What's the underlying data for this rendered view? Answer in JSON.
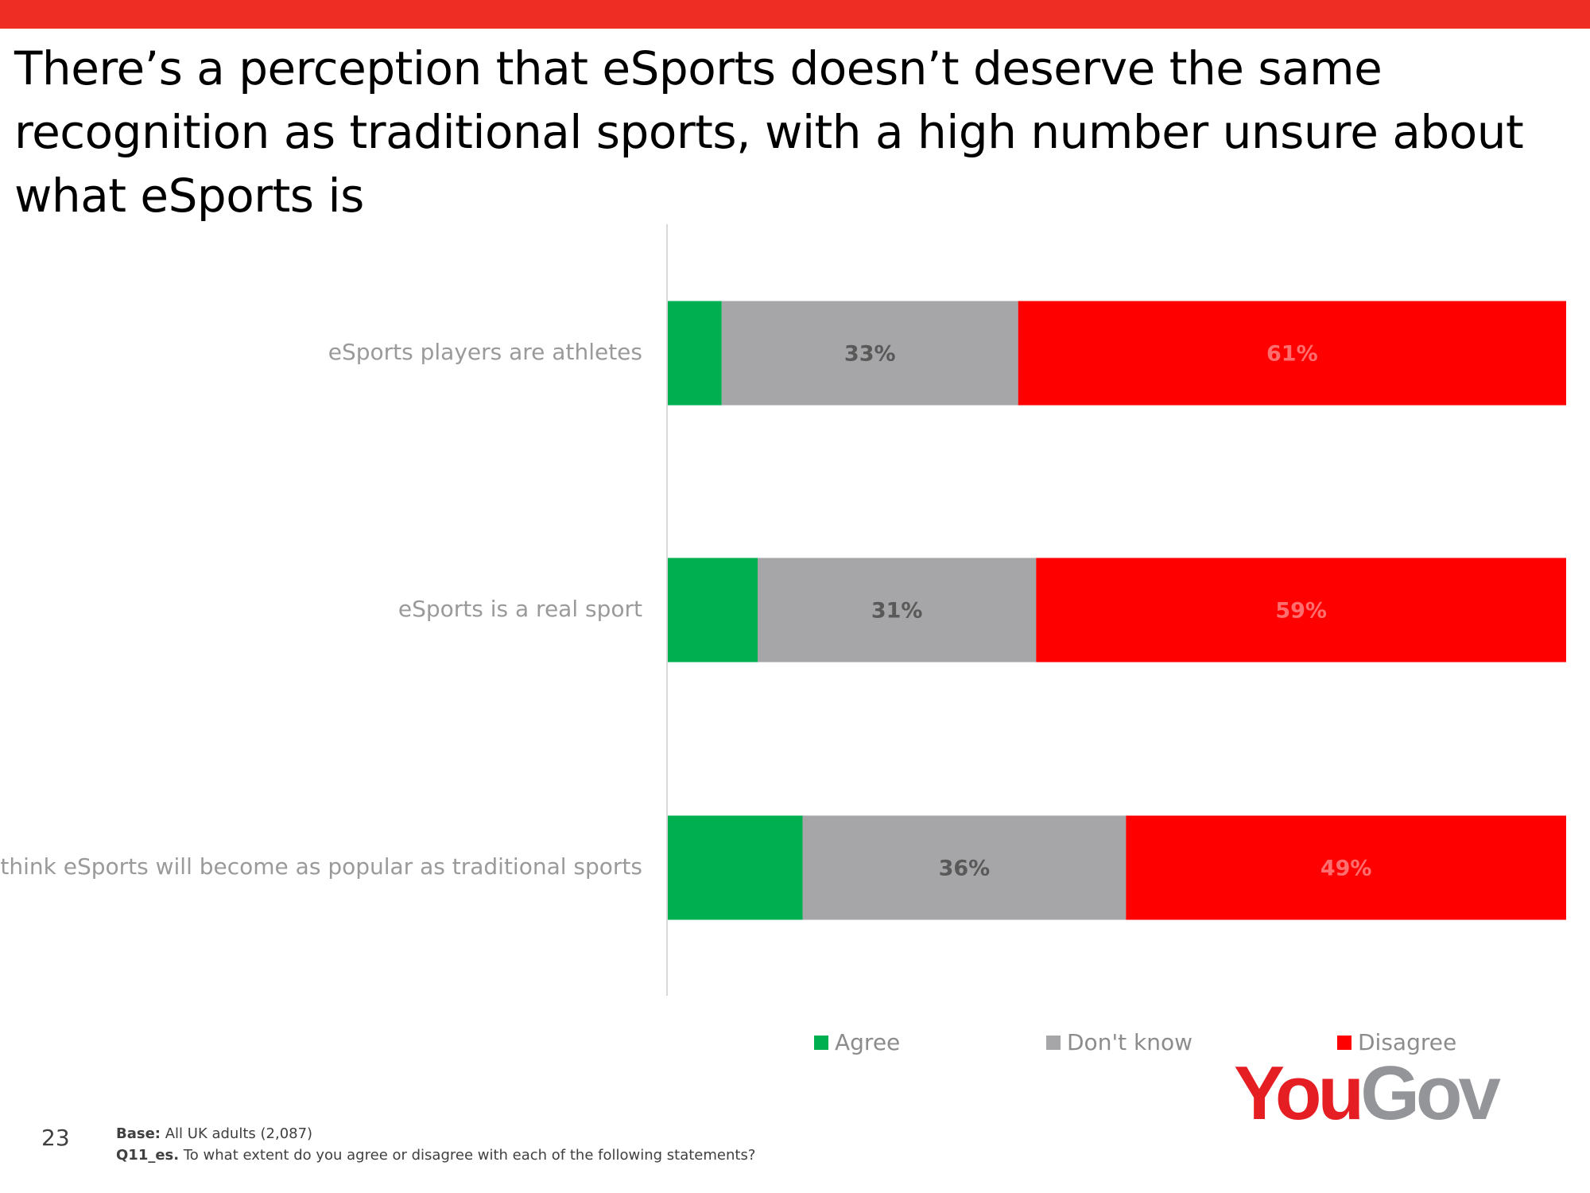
{
  "slide": {
    "title": "There’s a perception that eSports doesn’t deserve the same recognition as traditional sports, with a high number unsure about what eSports is",
    "page_number": "23",
    "base_label": "Base:",
    "base_text": "All UK adults (2,087)",
    "question_label": "Q11_es.",
    "question_text": "To what extent do you agree or disagree with each of the following statements?",
    "logo": {
      "you": "You",
      "gov": "Gov"
    },
    "colors": {
      "band": "#ee2e24"
    }
  },
  "chart_data": {
    "type": "bar",
    "orientation": "horizontal",
    "stacked": true,
    "percent_scale": true,
    "categories": [
      "eSports players are athletes",
      "eSports is a real sport",
      "I think eSports will become as popular as traditional sports"
    ],
    "series": [
      {
        "name": "Agree",
        "color": "#00b050",
        "label_color": "#00b050",
        "values": [
          6,
          10,
          15
        ]
      },
      {
        "name": "Don't know",
        "color": "#a6a6a8",
        "label_color": "#595959",
        "values": [
          33,
          31,
          36
        ]
      },
      {
        "name": "Disagree",
        "color": "#ff0000",
        "label_color": "#ff6e6e",
        "values": [
          61,
          59,
          49
        ]
      }
    ],
    "value_suffix": "%",
    "xlim": [
      0,
      100
    ],
    "grid": false,
    "legend_position": "bottom"
  }
}
